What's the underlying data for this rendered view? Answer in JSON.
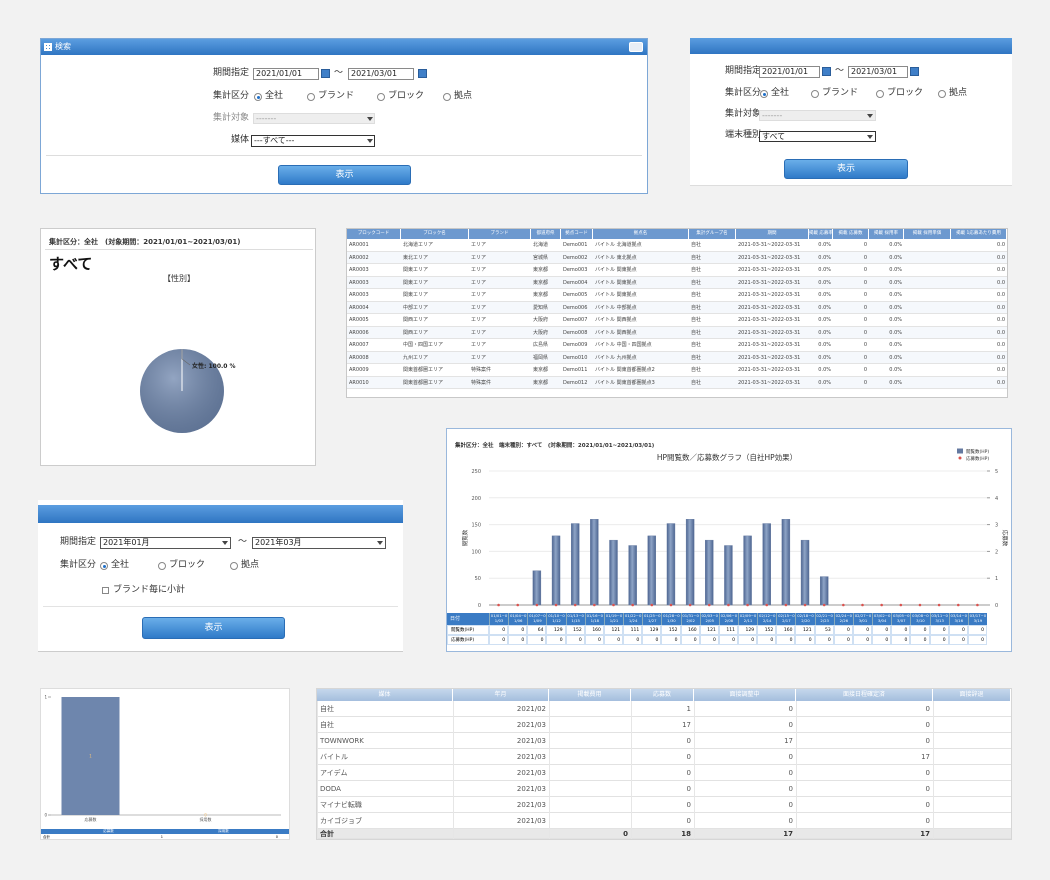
{
  "search_panel": {
    "title": "検索",
    "period_label": "期間指定",
    "date_from": "2021/01/01",
    "tilde": "～",
    "date_to": "2021/03/01",
    "unit_label": "集計区分",
    "options": [
      "全社",
      "ブランド",
      "ブロック",
      "拠点"
    ],
    "selected": 0,
    "target_label": "集計対象",
    "target_value": "-------",
    "media_label": "媒体",
    "media_value": "---すべて---",
    "button": "表示"
  },
  "search_panel_2": {
    "period_label": "期間指定",
    "date_from": "2021/01/01",
    "tilde": "～",
    "date_to": "2021/03/01",
    "unit_label": "集計区分",
    "options": [
      "全社",
      "ブランド",
      "ブロック",
      "拠点"
    ],
    "selected": 0,
    "target_label": "集計対象",
    "target_value": "-------",
    "device_label": "端末種別",
    "device_value": "すべて",
    "button": "表示"
  },
  "pie_panel": {
    "header": "集計区分：全社　(対象期間：2021/01/01~2021/03/01)",
    "title": "すべて",
    "chart": {
      "type": "pie",
      "title": "【性別】",
      "categories": [
        "女性"
      ],
      "values": [
        100.0
      ],
      "value_labels": [
        "女性: 100.0 %"
      ],
      "colors": [
        "#6f87ae"
      ]
    }
  },
  "base_table": {
    "columns": [
      "ブロックコード",
      "ブロック名",
      "ブランド",
      "都道府県",
      "拠点コード",
      "拠点名",
      "集計グループ名",
      "期間",
      "掲載 応募率",
      "掲載 応募数",
      "掲載 採用率",
      "掲載 採用単価",
      "掲載 1応募あたり費用"
    ],
    "rows": [
      [
        "AR0001",
        "北海道エリア",
        "エリア",
        "北海道",
        "Demo001",
        "バイトル 北海道拠点",
        "自社",
        "2021-03-31~2022-03-31",
        "0.0%",
        "0",
        "0.0%",
        null,
        "0.0"
      ],
      [
        "AR0002",
        "東北エリア",
        "エリア",
        "宮城県",
        "Demo002",
        "バイトル 東北拠点",
        "自社",
        "2021-03-31~2022-03-31",
        "0.0%",
        "0",
        "0.0%",
        null,
        "0.0"
      ],
      [
        "AR0003",
        "関東エリア",
        "エリア",
        "東京都",
        "Demo003",
        "バイトル 関東拠点",
        "自社",
        "2021-03-31~2022-03-31",
        "0.0%",
        "0",
        "0.0%",
        null,
        "0.0"
      ],
      [
        "AR0003",
        "関東エリア",
        "エリア",
        "東京都",
        "Demo004",
        "バイトル 関東拠点",
        "自社",
        "2021-03-31~2022-03-31",
        "0.0%",
        "0",
        "0.0%",
        null,
        "0.0"
      ],
      [
        "AR0003",
        "関東エリア",
        "エリア",
        "東京都",
        "Demo005",
        "バイトル 関東拠点",
        "自社",
        "2021-03-31~2022-03-31",
        "0.0%",
        "0",
        "0.0%",
        null,
        "0.0"
      ],
      [
        "AR0004",
        "中部エリア",
        "エリア",
        "愛知県",
        "Demo006",
        "バイトル 中部拠点",
        "自社",
        "2021-03-31~2022-03-31",
        "0.0%",
        "0",
        "0.0%",
        null,
        "0.0"
      ],
      [
        "AR0005",
        "関西エリア",
        "エリア",
        "大阪府",
        "Demo007",
        "バイトル 関西拠点",
        "自社",
        "2021-03-31~2022-03-31",
        "0.0%",
        "0",
        "0.0%",
        null,
        "0.0"
      ],
      [
        "AR0006",
        "関西エリア",
        "エリア",
        "大阪府",
        "Demo008",
        "バイトル 関西拠点",
        "自社",
        "2021-03-31~2022-03-31",
        "0.0%",
        "0",
        "0.0%",
        null,
        "0.0"
      ],
      [
        "AR0007",
        "中国・四国エリア",
        "エリア",
        "広島県",
        "Demo009",
        "バイトル 中国・四国拠点",
        "自社",
        "2021-03-31~2022-03-31",
        "0.0%",
        "0",
        "0.0%",
        null,
        "0.0"
      ],
      [
        "AR0008",
        "九州エリア",
        "エリア",
        "福岡県",
        "Demo010",
        "バイトル 九州拠点",
        "自社",
        "2021-03-31~2022-03-31",
        "0.0%",
        "0",
        "0.0%",
        null,
        "0.0"
      ],
      [
        "AR0009",
        "関東首都圏エリア",
        "特殊案件",
        "東京都",
        "Demo011",
        "バイトル 関東首都圏拠点2",
        "自社",
        "2021-03-31~2022-03-31",
        "0.0%",
        "0",
        "0.0%",
        null,
        "0.0"
      ],
      [
        "AR0010",
        "関東首都圏エリア",
        "特殊案件",
        "東京都",
        "Demo012",
        "バイトル 関東首都圏拠点3",
        "自社",
        "2021-03-31~2022-03-31",
        "0.0%",
        "0",
        "0.0%",
        null,
        "0.0"
      ]
    ]
  },
  "bar_panel": {
    "header": "集計区分：全社　端末種別：すべて　(対象期間：2021/01/01~2021/03/01)",
    "chart": {
      "type": "bar",
      "title": "HP閲覧数／応募数グラフ（自社HP効果）",
      "categories": [
        "01/01~01/03",
        "01/04~01/06",
        "01/07~01/09",
        "01/10~01/12",
        "01/13~01/15",
        "01/16~01/18",
        "01/19~01/21",
        "01/22~01/24",
        "01/25~01/27",
        "01/28~01/30",
        "01/31~02/02",
        "02/03~02/05",
        "02/06~02/08",
        "02/09~02/11",
        "02/12~02/14",
        "02/15~02/17",
        "02/18~02/20",
        "02/21~02/23",
        "02/24~02/26",
        "02/27~03/01",
        "03/02~03/04",
        "03/05~03/07",
        "03/08~03/10",
        "03/11~03/13",
        "03/14~03/16",
        "03/17~03/19"
      ],
      "series": [
        {
          "name": "閲覧数(HP)",
          "color": "#6479a0",
          "values": [
            0,
            0,
            64,
            129,
            152,
            160,
            121,
            111,
            129,
            152,
            160,
            121,
            111,
            129,
            152,
            160,
            121,
            53,
            0,
            0,
            0,
            0,
            0,
            0,
            0,
            0
          ]
        },
        {
          "name": "応募数(HP)",
          "color": "#d9534f",
          "axis": "y2",
          "values": [
            0,
            0,
            0,
            0,
            0,
            0,
            0,
            0,
            0,
            0,
            0,
            0,
            0,
            0,
            0,
            0,
            0,
            0,
            0,
            0,
            0,
            0,
            0,
            0,
            0,
            0
          ]
        }
      ],
      "ylim": [
        0,
        250
      ],
      "yticks": [
        0,
        50,
        100,
        150,
        200,
        250
      ],
      "y2lim": [
        0,
        5
      ],
      "y2ticks": [
        0,
        1,
        2,
        3,
        4,
        5
      ],
      "ylabel": "閲覧数",
      "y2label": "応募数",
      "grid": true,
      "legend": "upper right",
      "table_header": "日付"
    }
  },
  "form_panel": {
    "period_label": "期間指定",
    "month_from": "2021年01月",
    "tilde": "～",
    "month_to": "2021年03月",
    "unit_label": "集計区分",
    "options": [
      "全社",
      "ブロック",
      "拠点"
    ],
    "selected": 0,
    "checkbox": "ブランド毎に小計",
    "button": "表示"
  },
  "small_chart": {
    "type": "bar",
    "categories": [
      "応募数",
      "採用数"
    ],
    "values": [
      1,
      0
    ],
    "ylim": [
      0,
      1
    ],
    "yticks": [
      0,
      1
    ],
    "color": "#6e86ad",
    "table": {
      "row_label": "合計"
    }
  },
  "media_table": {
    "columns": [
      "媒体",
      "年月",
      "掲載費用",
      "応募数",
      "面接調整中",
      "面接日程確定済",
      "面接辞退"
    ],
    "rows": [
      [
        "自社",
        "2021/02",
        null,
        1,
        0,
        0,
        null
      ],
      [
        "自社",
        "2021/03",
        null,
        17,
        0,
        0,
        null
      ],
      [
        "TOWNWORK",
        "2021/03",
        null,
        0,
        17,
        0,
        null
      ],
      [
        "バイトル",
        "2021/03",
        null,
        0,
        0,
        17,
        null
      ],
      [
        "アイデム",
        "2021/03",
        null,
        0,
        0,
        0,
        null
      ],
      [
        "DODA",
        "2021/03",
        null,
        0,
        0,
        0,
        null
      ],
      [
        "マイナビ転職",
        "2021/03",
        null,
        0,
        0,
        0,
        null
      ],
      [
        "カイゴジョブ",
        "2021/03",
        null,
        0,
        0,
        0,
        null
      ]
    ],
    "total": [
      "合計",
      null,
      0,
      18,
      17,
      17,
      null
    ]
  }
}
